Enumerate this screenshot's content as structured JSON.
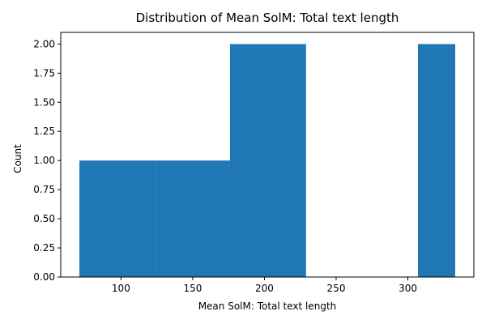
{
  "chart_data": {
    "type": "histogram",
    "title": "Distribution of Mean SolM: Total text length",
    "xlabel": "Mean SolM: Total text length",
    "ylabel": "Count",
    "xlim": [
      58,
      346
    ],
    "ylim": [
      0,
      2.1
    ],
    "x_ticks": [
      100,
      150,
      200,
      250,
      300
    ],
    "y_ticks": [
      0.0,
      0.25,
      0.5,
      0.75,
      1.0,
      1.25,
      1.5,
      1.75,
      2.0
    ],
    "y_tick_labels": [
      "0.00",
      "0.25",
      "0.50",
      "0.75",
      "1.00",
      "1.25",
      "1.50",
      "1.75",
      "2.00"
    ],
    "bins": [
      {
        "x0": 71,
        "x1": 124,
        "count": 1
      },
      {
        "x0": 124,
        "x1": 176,
        "count": 1
      },
      {
        "x0": 176,
        "x1": 229,
        "count": 2
      },
      {
        "x0": 229,
        "x1": 281,
        "count": 0
      },
      {
        "x0": 281,
        "x1": 307,
        "count": 0
      },
      {
        "x0": 307,
        "x1": 333,
        "count": 2
      }
    ],
    "bar_color": "#1f77b4",
    "grid": false,
    "legend": "none"
  }
}
